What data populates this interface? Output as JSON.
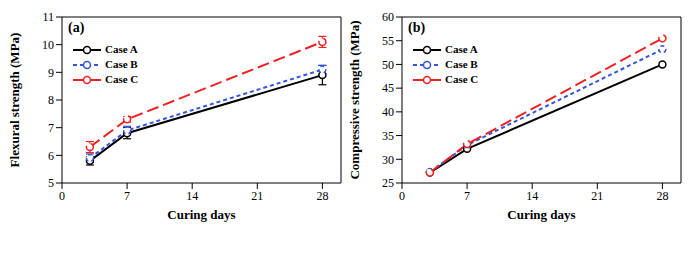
{
  "chart_data": [
    {
      "type": "line",
      "title": "(a)",
      "x_label": "Curing days",
      "y_label": "Flexural strength (MPa)",
      "x": [
        3,
        7,
        28
      ],
      "xlim": [
        0,
        30
      ],
      "xticks": [
        0,
        7,
        14,
        21,
        28
      ],
      "ylim": [
        5,
        11
      ],
      "yticks": [
        5,
        6,
        7,
        8,
        9,
        10,
        11
      ],
      "legend": "upper left",
      "series": [
        {
          "name": "Case A",
          "color": "#000000",
          "marker": "circle",
          "line_style": "solid",
          "values": [
            5.8,
            6.8,
            8.9
          ],
          "errors": [
            0.15,
            0.2,
            0.35
          ]
        },
        {
          "name": "Case B",
          "color": "#3355dd",
          "marker": "circle",
          "line_style": "dashed",
          "values": [
            5.9,
            6.9,
            9.1
          ],
          "errors": [
            0.15,
            0.15,
            0.15
          ]
        },
        {
          "name": "Case C",
          "color": "#ee2222",
          "marker": "circle",
          "line_style": "longdash",
          "values": [
            6.3,
            7.3,
            10.1
          ],
          "errors": [
            0.2,
            0.1,
            0.2
          ]
        }
      ]
    },
    {
      "type": "line",
      "title": "(b)",
      "x_label": "Curing days",
      "y_label": "Compressive strength (MPa)",
      "x": [
        3,
        7,
        28
      ],
      "xlim": [
        0,
        30
      ],
      "xticks": [
        0,
        7,
        14,
        21,
        28
      ],
      "ylim": [
        25,
        60
      ],
      "yticks": [
        25,
        30,
        35,
        40,
        45,
        50,
        55,
        60
      ],
      "legend": "upper left",
      "series": [
        {
          "name": "Case A",
          "color": "#000000",
          "marker": "circle",
          "line_style": "solid",
          "values": [
            27.2,
            32.2,
            50.0
          ]
        },
        {
          "name": "Case B",
          "color": "#3355dd",
          "marker": "circle",
          "line_style": "dashed",
          "values": [
            27.3,
            33.0,
            53.2
          ]
        },
        {
          "name": "Case C",
          "color": "#ee2222",
          "marker": "circle",
          "line_style": "longdash",
          "values": [
            27.2,
            33.2,
            55.5
          ]
        }
      ]
    }
  ]
}
